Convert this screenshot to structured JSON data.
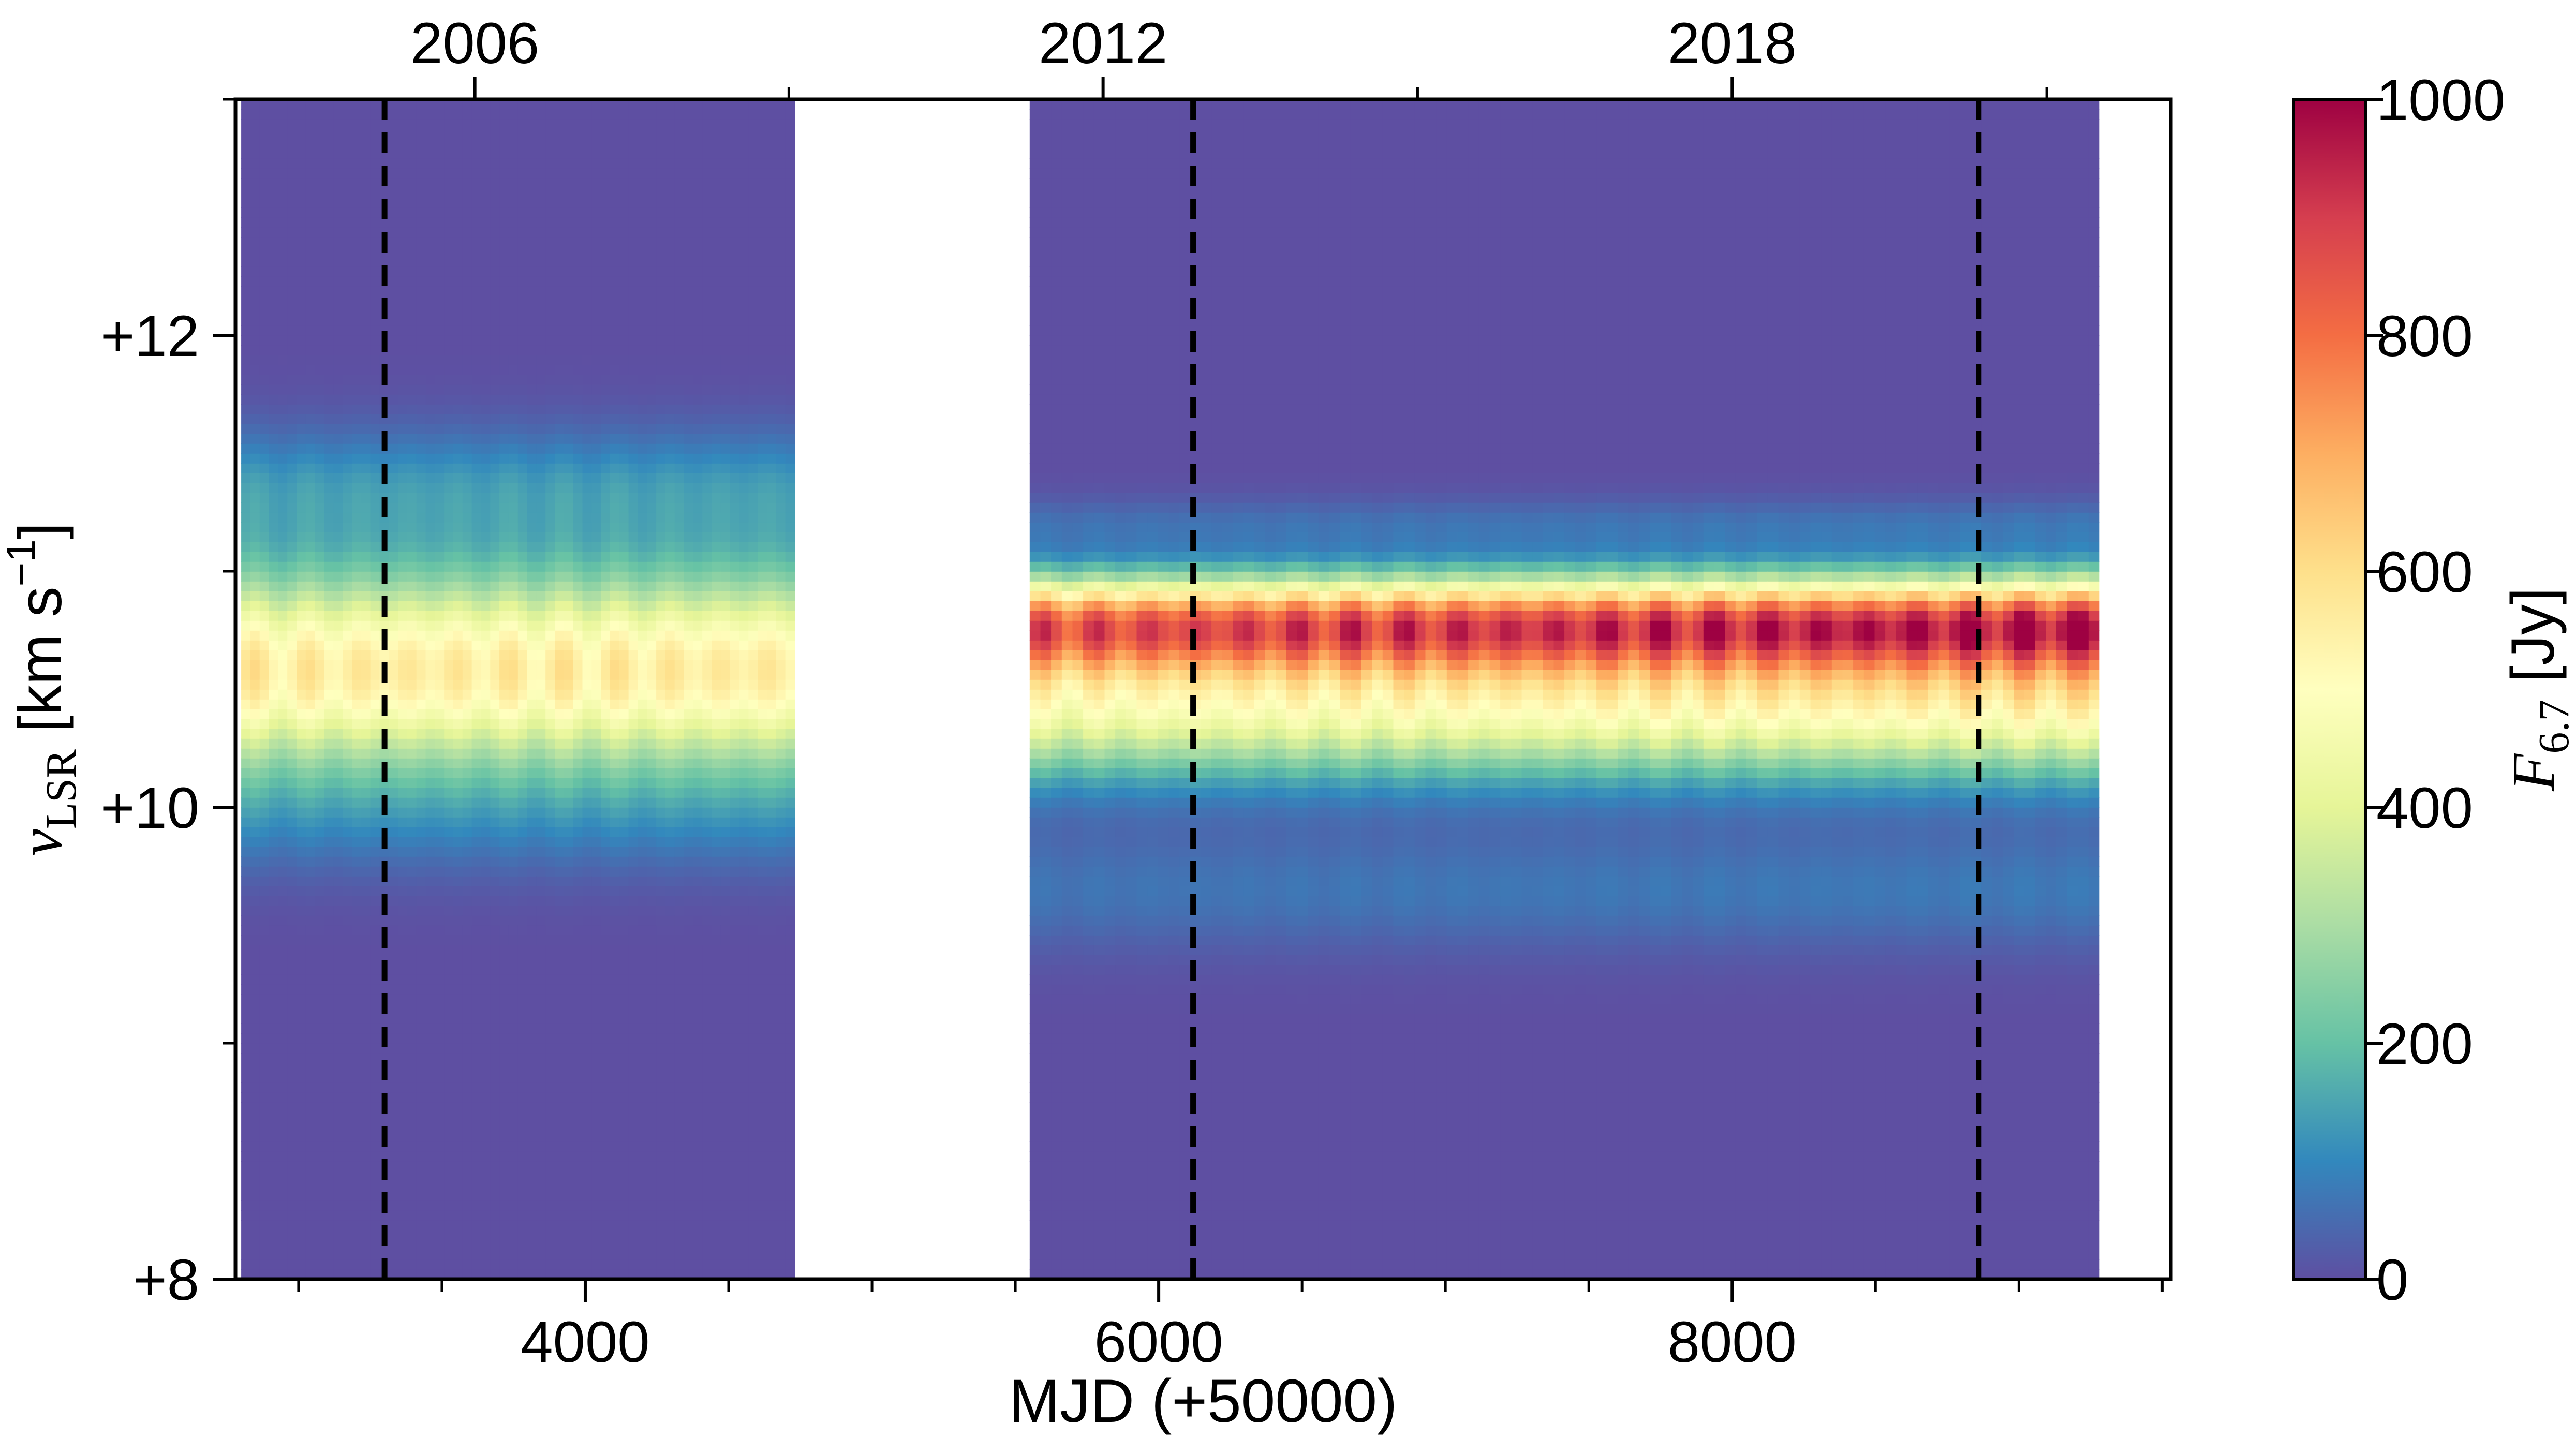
{
  "chart_data": {
    "type": "heatmap",
    "title": "",
    "xlabel": "MJD (+50000)",
    "ylabel": {
      "symbol": "v",
      "subscript": "LSR",
      "units": " [km s",
      "exponent": "−1",
      "close": "]"
    },
    "x_ticks": [
      {
        "value": 4000,
        "label": "4000"
      },
      {
        "value": 6000,
        "label": "6000"
      },
      {
        "value": 8000,
        "label": "8000"
      }
    ],
    "x_minor_ticks": [
      3000,
      3500,
      4500,
      5000,
      5500,
      6500,
      7000,
      7500,
      8500,
      9000,
      9500
    ],
    "top_ticks": [
      {
        "value": 3615,
        "label": "2006"
      },
      {
        "value": 5806,
        "label": "2012"
      },
      {
        "value": 8000,
        "label": "2018"
      }
    ],
    "top_minor_ticks": [
      4710,
      6903,
      9097
    ],
    "y_ticks": [
      {
        "value": 8,
        "label": "+8"
      },
      {
        "value": 10,
        "label": "+10"
      },
      {
        "value": 12,
        "label": "+12"
      }
    ],
    "y_minor_ticks": [
      9,
      11,
      13
    ],
    "xlim": [
      2780,
      9530
    ],
    "ylim": [
      8,
      13
    ],
    "observation_spans": [
      [
        2800,
        4730
      ],
      [
        5550,
        9280
      ]
    ],
    "vertical_markers": [
      3300,
      6120,
      8860
    ],
    "emission_profile": {
      "early": [
        {
          "v": 10.58,
          "peak": 560,
          "width": 0.3
        },
        {
          "v": 11.35,
          "peak": 120,
          "width": 0.18
        },
        {
          "v": 9.95,
          "peak": 60,
          "width": 0.18
        }
      ],
      "late": [
        {
          "v": 10.78,
          "peak": 760,
          "width": 0.14
        },
        {
          "v": 10.45,
          "peak": 500,
          "width": 0.22
        },
        {
          "v": 9.65,
          "peak": 70,
          "width": 0.18
        },
        {
          "v": 11.2,
          "peak": 60,
          "width": 0.08
        }
      ]
    },
    "colorbar": {
      "label_symbol": "F",
      "label_subscript": "6.7",
      "label_units": " [Jy]",
      "range": [
        0,
        1000
      ],
      "ticks": [
        {
          "value": 0,
          "label": "0"
        },
        {
          "value": 200,
          "label": "200"
        },
        {
          "value": 400,
          "label": "400"
        },
        {
          "value": 600,
          "label": "600"
        },
        {
          "value": 800,
          "label": "800"
        },
        {
          "value": 1000,
          "label": "1000"
        }
      ],
      "colormap": [
        "#5e4fa2",
        "#3288bd",
        "#66c2a5",
        "#abdda4",
        "#e6f598",
        "#ffffbf",
        "#fee08b",
        "#fdae61",
        "#f46d43",
        "#d53e4f",
        "#9e0142"
      ]
    },
    "grid": false,
    "legend": "none"
  }
}
